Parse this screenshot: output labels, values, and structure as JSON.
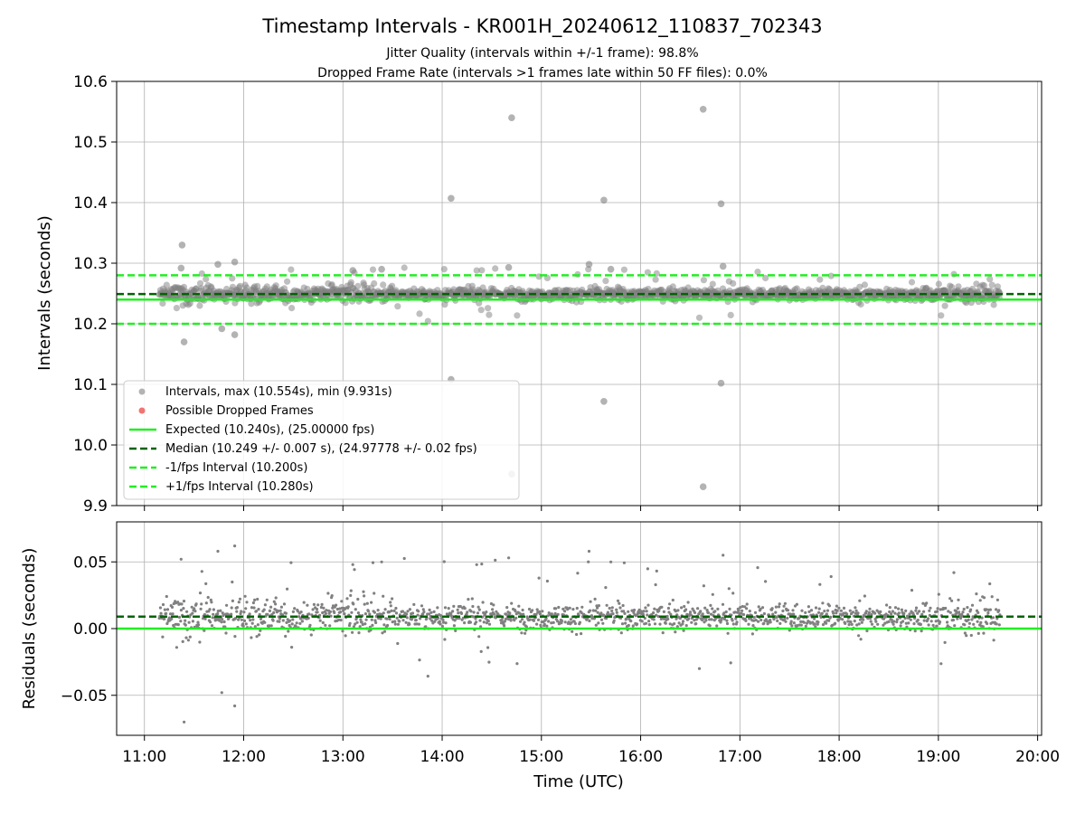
{
  "chart_data": {
    "type": "scatter",
    "title": "Timestamp Intervals - KR001H_20240612_110837_702343",
    "subtitle_lines": [
      "Jitter Quality (intervals within +/-1 frame): 98.8%",
      "Dropped Frame Rate (intervals >1 frames late within 50 FF files): 0.0%"
    ],
    "xlabel": "Time (UTC)",
    "x_ticks": [
      "11:00",
      "12:00",
      "13:00",
      "14:00",
      "15:00",
      "16:00",
      "17:00",
      "18:00",
      "19:00",
      "20:00"
    ],
    "x_range_hours": [
      10.72,
      20.04
    ],
    "data_span_hours": [
      11.15,
      19.62
    ],
    "grid": true,
    "top_panel": {
      "ylabel": "Intervals (seconds)",
      "ylim": [
        9.9,
        10.6
      ],
      "y_ticks": [
        "9.9",
        "10.0",
        "10.1",
        "10.2",
        "10.3",
        "10.4",
        "10.5",
        "10.6"
      ],
      "y_tick_values": [
        9.9,
        10.0,
        10.1,
        10.2,
        10.3,
        10.4,
        10.5,
        10.6
      ],
      "lines": [
        {
          "name": "Expected (10.240s), (25.00000 fps)",
          "y": 10.24,
          "style": "solid",
          "color": "#22ee22"
        },
        {
          "name": "Median (10.249 +/- 0.007 s), (24.97778 +/- 0.02 fps)",
          "y": 10.249,
          "style": "dashed",
          "color": "#006400"
        },
        {
          "name": "-1/fps Interval (10.200s)",
          "y": 10.2,
          "style": "dashed",
          "color": "#22ee22"
        },
        {
          "name": "+1/fps Interval (10.280s)",
          "y": 10.28,
          "style": "dashed",
          "color": "#22ee22"
        }
      ],
      "series": [
        {
          "name": "Intervals, max (10.554s), min (9.931s)",
          "color": "#808080",
          "marker": "circle"
        },
        {
          "name": "Possible Dropped Frames",
          "color": "#f05050",
          "marker": "circle"
        }
      ],
      "outliers": [
        {
          "t": 11.38,
          "v": 10.33
        },
        {
          "t": 11.4,
          "v": 10.17
        },
        {
          "t": 11.74,
          "v": 10.298
        },
        {
          "t": 11.91,
          "v": 10.302
        },
        {
          "t": 11.91,
          "v": 10.182
        },
        {
          "t": 11.78,
          "v": 10.192
        },
        {
          "t": 14.09,
          "v": 10.407
        },
        {
          "t": 14.09,
          "v": 10.108
        },
        {
          "t": 14.7,
          "v": 10.54
        },
        {
          "t": 14.7,
          "v": 9.952
        },
        {
          "t": 15.63,
          "v": 10.404
        },
        {
          "t": 15.63,
          "v": 10.072
        },
        {
          "t": 16.63,
          "v": 10.554
        },
        {
          "t": 16.63,
          "v": 9.931
        },
        {
          "t": 16.81,
          "v": 10.398
        },
        {
          "t": 16.81,
          "v": 10.102
        },
        {
          "t": 15.48,
          "v": 10.298
        },
        {
          "t": 14.67,
          "v": 10.293
        },
        {
          "t": 16.83,
          "v": 10.295
        },
        {
          "t": 15.7,
          "v": 10.29
        },
        {
          "t": 13.1,
          "v": 10.288
        },
        {
          "t": 13.39,
          "v": 10.29
        },
        {
          "t": 11.37,
          "v": 10.292
        }
      ],
      "legend_position": "lower-left"
    },
    "bottom_panel": {
      "ylabel": "Residuals (seconds)",
      "ylim": [
        -0.08,
        0.08
      ],
      "y_ticks": [
        "−0.05",
        "0.00",
        "0.05"
      ],
      "y_tick_values": [
        -0.05,
        0.0,
        0.05
      ],
      "lines": [
        {
          "y": 0.0,
          "style": "solid",
          "color": "#22ee22"
        },
        {
          "y": 0.009,
          "style": "dashed",
          "color": "#006400"
        }
      ]
    },
    "colors": {
      "points": "#808080",
      "expected": "#22ee22",
      "median": "#006400",
      "grid": "#b0b0b0"
    }
  }
}
